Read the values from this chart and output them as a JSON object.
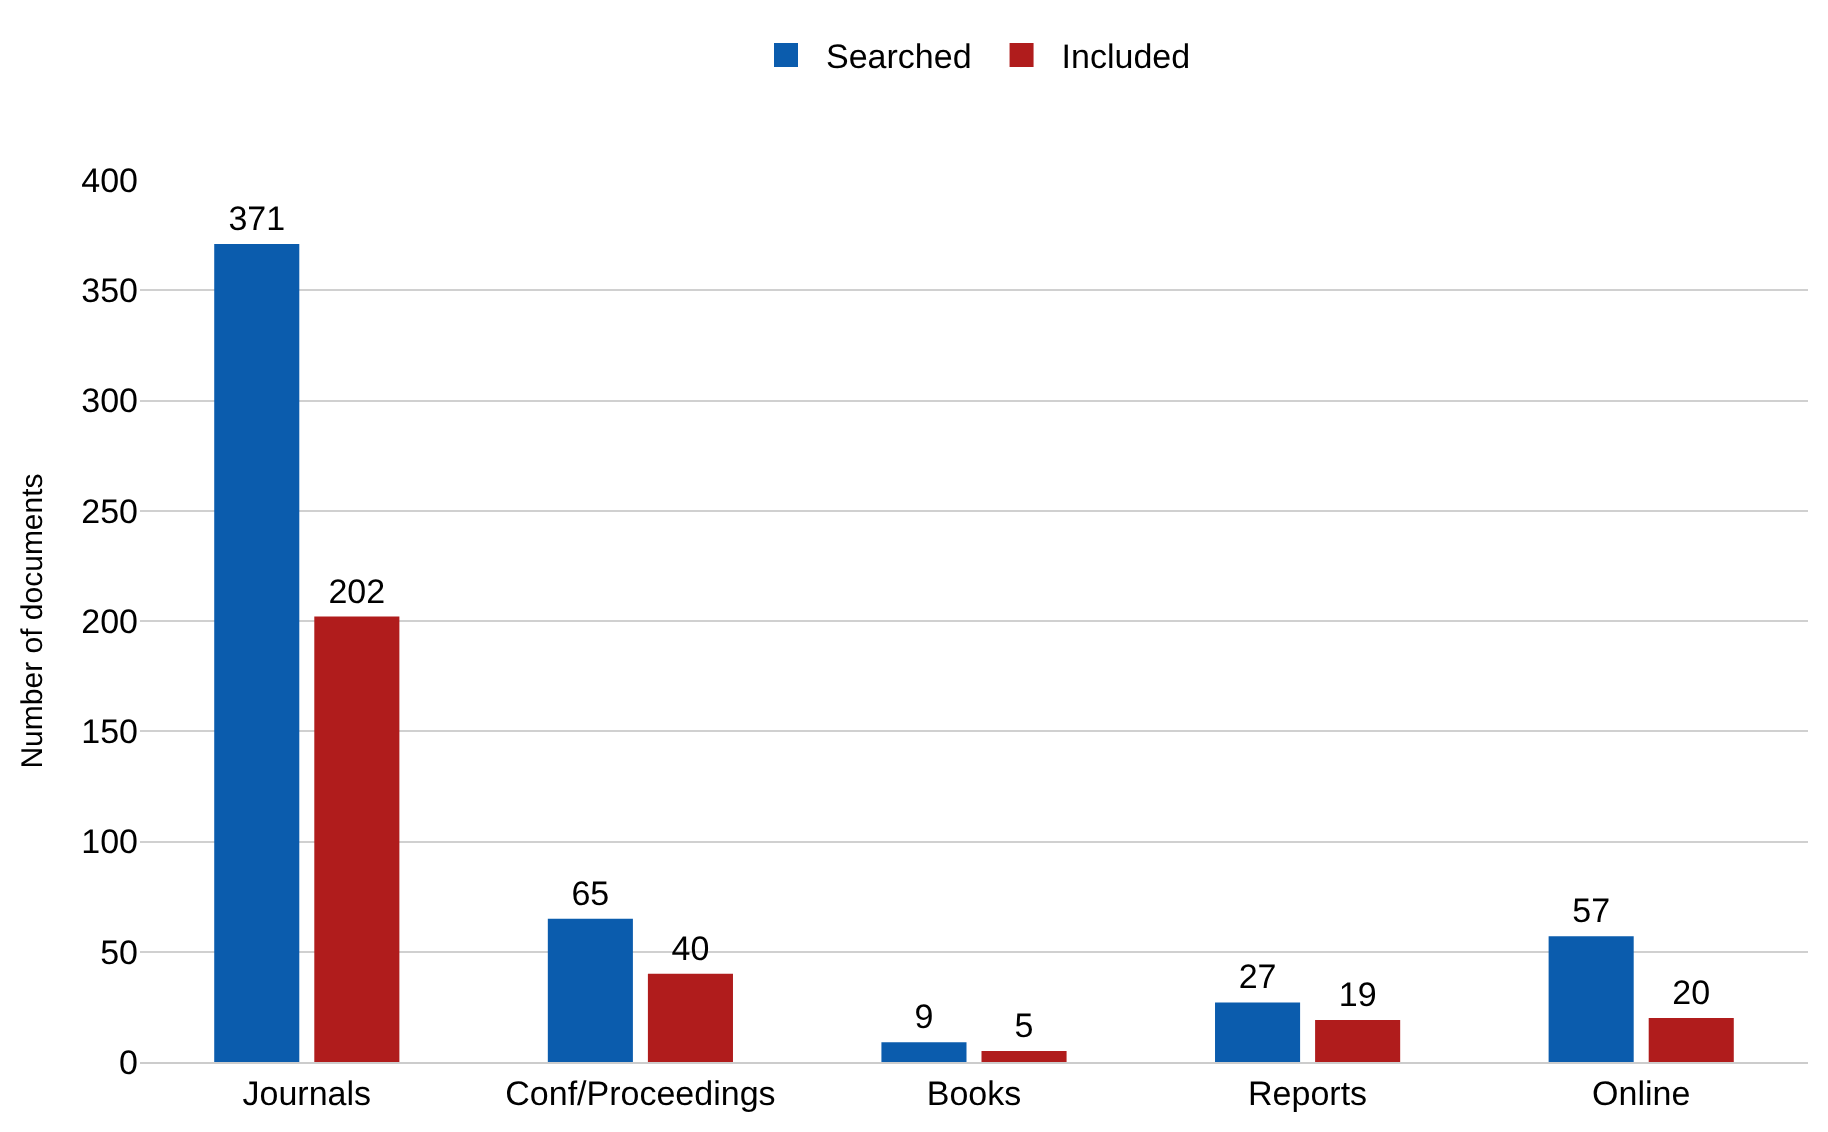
{
  "chart_data": {
    "type": "bar",
    "ylabel": "Number of documents",
    "categories": [
      "Journals",
      "Conf/Proceedings",
      "Books",
      "Reports",
      "Online"
    ],
    "series": [
      {
        "name": "Searched",
        "color": "#0b5cad",
        "values": [
          371,
          65,
          9,
          27,
          57
        ]
      },
      {
        "name": "Included",
        "color": "#b01c1c",
        "values": [
          202,
          40,
          5,
          19,
          20
        ]
      }
    ],
    "ylim": [
      0,
      400
    ],
    "yticks": [
      0,
      50,
      100,
      150,
      200,
      250,
      300,
      350,
      400
    ],
    "grid": "y",
    "legend": "top",
    "data_labels": true
  }
}
